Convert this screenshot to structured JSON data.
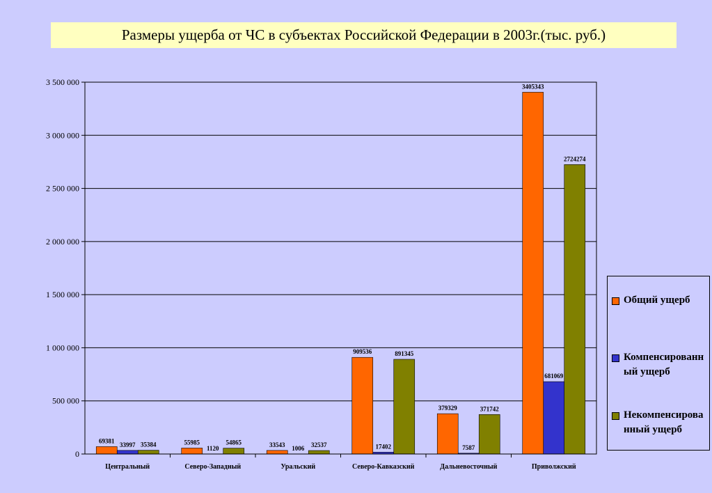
{
  "chart_data": {
    "type": "bar",
    "title": "Размеры ущерба от ЧС в субъектах Российской Федерации в 2003г.(тыс. руб.)",
    "xlabel": "",
    "ylabel": "",
    "ylim": [
      0,
      3500000
    ],
    "yticks": [
      0,
      500000,
      1000000,
      1500000,
      2000000,
      2500000,
      3000000,
      3500000
    ],
    "ytick_labels": [
      "0",
      "500 000",
      "1 000 000",
      "1 500 000",
      "2 000 000",
      "2 500 000",
      "3 000 000",
      "3 500 000"
    ],
    "grid": true,
    "legend_position": "right",
    "categories": [
      "Центральный",
      "Северо-Западный",
      "Уральский",
      "Северо-Кавказский",
      "Дальневосточный",
      "Приволжский"
    ],
    "series": [
      {
        "name": "Общий ущерб",
        "color": "#ff6600",
        "values": [
          69381,
          55985,
          33543,
          909536,
          379329,
          3405343
        ]
      },
      {
        "name": "Компенсированный ущерб",
        "color": "#3333cc",
        "values": [
          33997,
          1120,
          1006,
          17402,
          7587,
          681069
        ]
      },
      {
        "name": "Некомпенсированный ущерб",
        "color": "#808000",
        "values": [
          35384,
          54865,
          32537,
          891345,
          371742,
          2724274
        ]
      }
    ]
  },
  "legend": {
    "items": [
      {
        "label": "Общий ущерб",
        "color": "#ff6600"
      },
      {
        "label": "Компенсированный ущерб",
        "color": "#3333cc"
      },
      {
        "label": "Некомпенсированный ущерб",
        "color": "#808000"
      }
    ]
  }
}
